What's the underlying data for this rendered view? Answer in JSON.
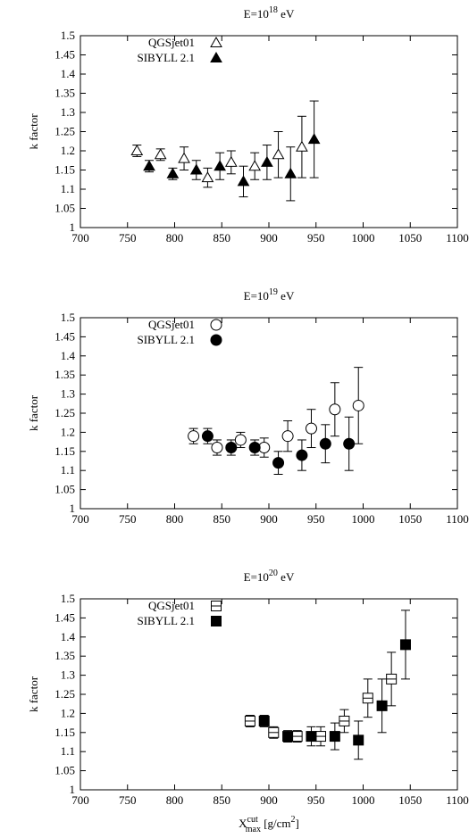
{
  "chart_data": [
    {
      "type": "scatter",
      "title": {
        "base": "E=10",
        "exp": "18",
        "unit": " eV"
      },
      "ylabel": "k factor",
      "xlabel": "",
      "xlim": [
        700,
        1100
      ],
      "ylim": [
        1,
        1.5
      ],
      "xticks": [
        "700",
        "750",
        "800",
        "850",
        "900",
        "950",
        "1000",
        "1050",
        "1100"
      ],
      "yticks": [
        "1",
        "1.05",
        "1.1",
        "1.15",
        "1.2",
        "1.25",
        "1.3",
        "1.35",
        "1.4",
        "1.45",
        "1.5"
      ],
      "marker": "triangle",
      "legend_position": "top-left",
      "series": [
        {
          "name": "QGSjet01",
          "filled": false,
          "points": [
            {
              "x": 760,
              "y": 1.2,
              "err": 0.015
            },
            {
              "x": 785,
              "y": 1.19,
              "err": 0.015
            },
            {
              "x": 810,
              "y": 1.18,
              "err": 0.03
            },
            {
              "x": 835,
              "y": 1.13,
              "err": 0.025
            },
            {
              "x": 860,
              "y": 1.17,
              "err": 0.03
            },
            {
              "x": 885,
              "y": 1.16,
              "err": 0.035
            },
            {
              "x": 910,
              "y": 1.19,
              "err": 0.06
            },
            {
              "x": 935,
              "y": 1.21,
              "err": 0.08
            }
          ]
        },
        {
          "name": "SIBYLL 2.1",
          "filled": true,
          "points": [
            {
              "x": 773,
              "y": 1.16,
              "err": 0.015
            },
            {
              "x": 798,
              "y": 1.14,
              "err": 0.015
            },
            {
              "x": 823,
              "y": 1.15,
              "err": 0.025
            },
            {
              "x": 848,
              "y": 1.16,
              "err": 0.035
            },
            {
              "x": 873,
              "y": 1.12,
              "err": 0.04
            },
            {
              "x": 898,
              "y": 1.17,
              "err": 0.045
            },
            {
              "x": 923,
              "y": 1.14,
              "err": 0.07
            },
            {
              "x": 948,
              "y": 1.23,
              "err": 0.1
            }
          ]
        }
      ]
    },
    {
      "type": "scatter",
      "title": {
        "base": "E=10",
        "exp": "19",
        "unit": " eV"
      },
      "ylabel": "k factor",
      "xlabel": "",
      "xlim": [
        700,
        1100
      ],
      "ylim": [
        1,
        1.5
      ],
      "xticks": [
        "700",
        "750",
        "800",
        "850",
        "900",
        "950",
        "1000",
        "1050",
        "1100"
      ],
      "yticks": [
        "1",
        "1.05",
        "1.1",
        "1.15",
        "1.2",
        "1.25",
        "1.3",
        "1.35",
        "1.4",
        "1.45",
        "1.5"
      ],
      "marker": "circle",
      "legend_position": "top-left",
      "series": [
        {
          "name": "QGSjet01",
          "filled": false,
          "points": [
            {
              "x": 820,
              "y": 1.19,
              "err": 0.02
            },
            {
              "x": 845,
              "y": 1.16,
              "err": 0.02
            },
            {
              "x": 870,
              "y": 1.18,
              "err": 0.02
            },
            {
              "x": 895,
              "y": 1.16,
              "err": 0.025
            },
            {
              "x": 920,
              "y": 1.19,
              "err": 0.04
            },
            {
              "x": 945,
              "y": 1.21,
              "err": 0.05
            },
            {
              "x": 970,
              "y": 1.26,
              "err": 0.07
            },
            {
              "x": 995,
              "y": 1.27,
              "err": 0.1
            }
          ]
        },
        {
          "name": "SIBYLL 2.1",
          "filled": true,
          "points": [
            {
              "x": 835,
              "y": 1.19,
              "err": 0.02
            },
            {
              "x": 860,
              "y": 1.16,
              "err": 0.02
            },
            {
              "x": 885,
              "y": 1.16,
              "err": 0.02
            },
            {
              "x": 910,
              "y": 1.12,
              "err": 0.03
            },
            {
              "x": 935,
              "y": 1.14,
              "err": 0.04
            },
            {
              "x": 960,
              "y": 1.17,
              "err": 0.05
            },
            {
              "x": 985,
              "y": 1.17,
              "err": 0.07
            }
          ]
        }
      ]
    },
    {
      "type": "scatter",
      "title": {
        "base": "E=10",
        "exp": "20",
        "unit": " eV"
      },
      "ylabel": "k factor",
      "xlabel": {
        "base": "X",
        "sup": "cut",
        "sub": "max",
        "unit": " [g/cm",
        "unit_sup": "2",
        "close": "]"
      },
      "xlim": [
        700,
        1100
      ],
      "ylim": [
        1,
        1.5
      ],
      "xticks": [
        "700",
        "750",
        "800",
        "850",
        "900",
        "950",
        "1000",
        "1050",
        "1100"
      ],
      "yticks": [
        "1",
        "1.05",
        "1.1",
        "1.15",
        "1.2",
        "1.25",
        "1.3",
        "1.35",
        "1.4",
        "1.45",
        "1.5"
      ],
      "marker": "square",
      "legend_position": "top-left",
      "series": [
        {
          "name": "QGSjet01",
          "filled": false,
          "points": [
            {
              "x": 880,
              "y": 1.18,
              "err": 0.015
            },
            {
              "x": 905,
              "y": 1.15,
              "err": 0.015
            },
            {
              "x": 930,
              "y": 1.14,
              "err": 0.015
            },
            {
              "x": 955,
              "y": 1.14,
              "err": 0.025
            },
            {
              "x": 980,
              "y": 1.18,
              "err": 0.03
            },
            {
              "x": 1005,
              "y": 1.24,
              "err": 0.05
            },
            {
              "x": 1030,
              "y": 1.29,
              "err": 0.07
            }
          ]
        },
        {
          "name": "SIBYLL 2.1",
          "filled": true,
          "points": [
            {
              "x": 895,
              "y": 1.18,
              "err": 0.015
            },
            {
              "x": 920,
              "y": 1.14,
              "err": 0.015
            },
            {
              "x": 945,
              "y": 1.14,
              "err": 0.025
            },
            {
              "x": 970,
              "y": 1.14,
              "err": 0.035
            },
            {
              "x": 995,
              "y": 1.13,
              "err": 0.05
            },
            {
              "x": 1020,
              "y": 1.22,
              "err": 0.07
            },
            {
              "x": 1045,
              "y": 1.38,
              "err": 0.09
            }
          ]
        }
      ]
    }
  ]
}
